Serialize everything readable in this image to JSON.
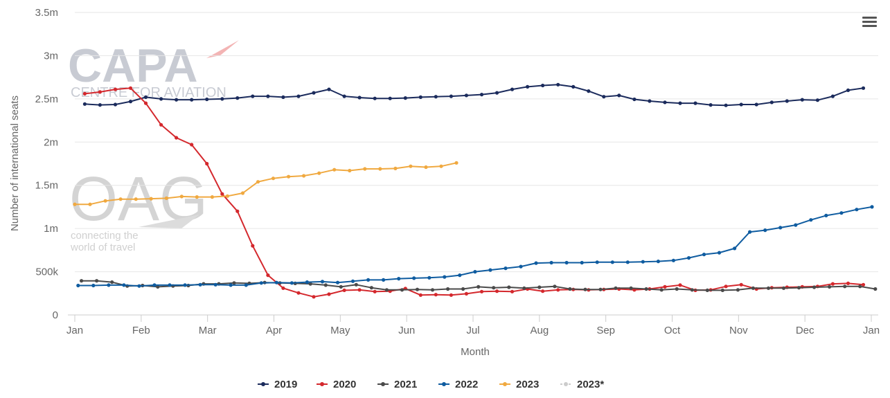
{
  "menu_icon": "hamburger-menu-icon",
  "watermark": {
    "capa_text": "CAPA",
    "capa_subtext": "CENTRE FOR AVIATION",
    "oag_text": "OAG",
    "oag_tagline_1": "connecting the",
    "oag_tagline_2": "world of travel"
  },
  "chart_data": {
    "type": "line",
    "title": "",
    "xlabel": "Month",
    "ylabel": "Number of international seats",
    "ylim": [
      0,
      3500000
    ],
    "y_ticks": [
      {
        "value": 0,
        "label": "0"
      },
      {
        "value": 500000,
        "label": "500k"
      },
      {
        "value": 1000000,
        "label": "1m"
      },
      {
        "value": 1500000,
        "label": "1.5m"
      },
      {
        "value": 2000000,
        "label": "2m"
      },
      {
        "value": 2500000,
        "label": "2.5m"
      },
      {
        "value": 3000000,
        "label": "3m"
      },
      {
        "value": 3500000,
        "label": "3.5m"
      }
    ],
    "x_range": [
      0,
      12
    ],
    "x_ticks": [
      {
        "value": 0,
        "label": "Jan"
      },
      {
        "value": 1,
        "label": "Feb"
      },
      {
        "value": 2,
        "label": "Mar"
      },
      {
        "value": 3,
        "label": "Apr"
      },
      {
        "value": 4,
        "label": "May"
      },
      {
        "value": 5,
        "label": "Jun"
      },
      {
        "value": 6,
        "label": "Jul"
      },
      {
        "value": 7,
        "label": "Aug"
      },
      {
        "value": 8,
        "label": "Sep"
      },
      {
        "value": 9,
        "label": "Oct"
      },
      {
        "value": 10,
        "label": "Nov"
      },
      {
        "value": 11,
        "label": "Dec"
      },
      {
        "value": 12,
        "label": "Jan"
      }
    ],
    "series": [
      {
        "name": "2019",
        "color": "#1b2b5c",
        "x0": 0.15,
        "dx": 0.23,
        "values": [
          2440000,
          2430000,
          2435000,
          2470000,
          2520000,
          2500000,
          2490000,
          2490000,
          2495000,
          2500000,
          2510000,
          2530000,
          2530000,
          2520000,
          2530000,
          2570000,
          2610000,
          2530000,
          2515000,
          2505000,
          2505000,
          2510000,
          2520000,
          2525000,
          2530000,
          2540000,
          2550000,
          2570000,
          2610000,
          2640000,
          2655000,
          2665000,
          2640000,
          2590000,
          2525000,
          2540000,
          2495000,
          2475000,
          2460000,
          2450000,
          2450000,
          2430000,
          2425000,
          2435000,
          2435000,
          2460000,
          2475000,
          2490000,
          2485000,
          2530000,
          2600000,
          2625000
        ]
      },
      {
        "name": "2020",
        "color": "#d4282d",
        "x0": 0.15,
        "dx": 0.23,
        "values": [
          2560000,
          2580000,
          2610000,
          2625000,
          2450000,
          2200000,
          2050000,
          1970000,
          1750000,
          1400000,
          1200000,
          800000,
          460000,
          310000,
          255000,
          210000,
          240000,
          285000,
          290000,
          270000,
          275000,
          305000,
          230000,
          235000,
          230000,
          245000,
          270000,
          275000,
          270000,
          300000,
          275000,
          290000,
          295000,
          290000,
          295000,
          300000,
          290000,
          300000,
          325000,
          345000,
          285000,
          290000,
          330000,
          350000,
          300000,
          315000,
          320000,
          325000,
          330000,
          360000,
          365000,
          350000
        ]
      },
      {
        "name": "2021",
        "color": "#4a4a4a",
        "x0": 0.1,
        "dx": 0.23,
        "values": [
          395000,
          395000,
          380000,
          335000,
          340000,
          325000,
          335000,
          340000,
          360000,
          360000,
          370000,
          365000,
          375000,
          370000,
          365000,
          360000,
          345000,
          325000,
          350000,
          315000,
          290000,
          290000,
          295000,
          290000,
          300000,
          300000,
          325000,
          315000,
          320000,
          310000,
          320000,
          330000,
          300000,
          295000,
          295000,
          310000,
          310000,
          300000,
          290000,
          300000,
          290000,
          285000,
          285000,
          290000,
          310000,
          310000,
          310000,
          315000,
          320000,
          325000,
          330000,
          330000,
          300000
        ]
      },
      {
        "name": "2022",
        "color": "#0f5ca0",
        "x0": 0.05,
        "dx": 0.23,
        "values": [
          340000,
          340000,
          345000,
          345000,
          335000,
          345000,
          345000,
          345000,
          350000,
          350000,
          345000,
          345000,
          370000,
          375000,
          370000,
          380000,
          385000,
          375000,
          390000,
          405000,
          405000,
          420000,
          425000,
          430000,
          440000,
          460000,
          500000,
          520000,
          540000,
          560000,
          600000,
          605000,
          605000,
          605000,
          610000,
          610000,
          610000,
          615000,
          620000,
          630000,
          660000,
          700000,
          720000,
          770000,
          960000,
          980000,
          1010000,
          1040000,
          1100000,
          1150000,
          1180000,
          1220000,
          1250000
        ]
      },
      {
        "name": "2023",
        "color": "#f0a940",
        "x0": 0.0,
        "dx": 0.23,
        "values": [
          1280000,
          1280000,
          1320000,
          1340000,
          1340000,
          1345000,
          1350000,
          1370000,
          1365000,
          1365000,
          1375000,
          1410000,
          1540000,
          1580000,
          1600000,
          1610000,
          1640000,
          1680000,
          1670000,
          1690000,
          1690000,
          1695000,
          1720000,
          1710000,
          1720000,
          1760000
        ]
      },
      {
        "name": "2023*",
        "color": "#cccccc",
        "dashed": true,
        "values": []
      }
    ],
    "legend_position": "bottom-center"
  }
}
